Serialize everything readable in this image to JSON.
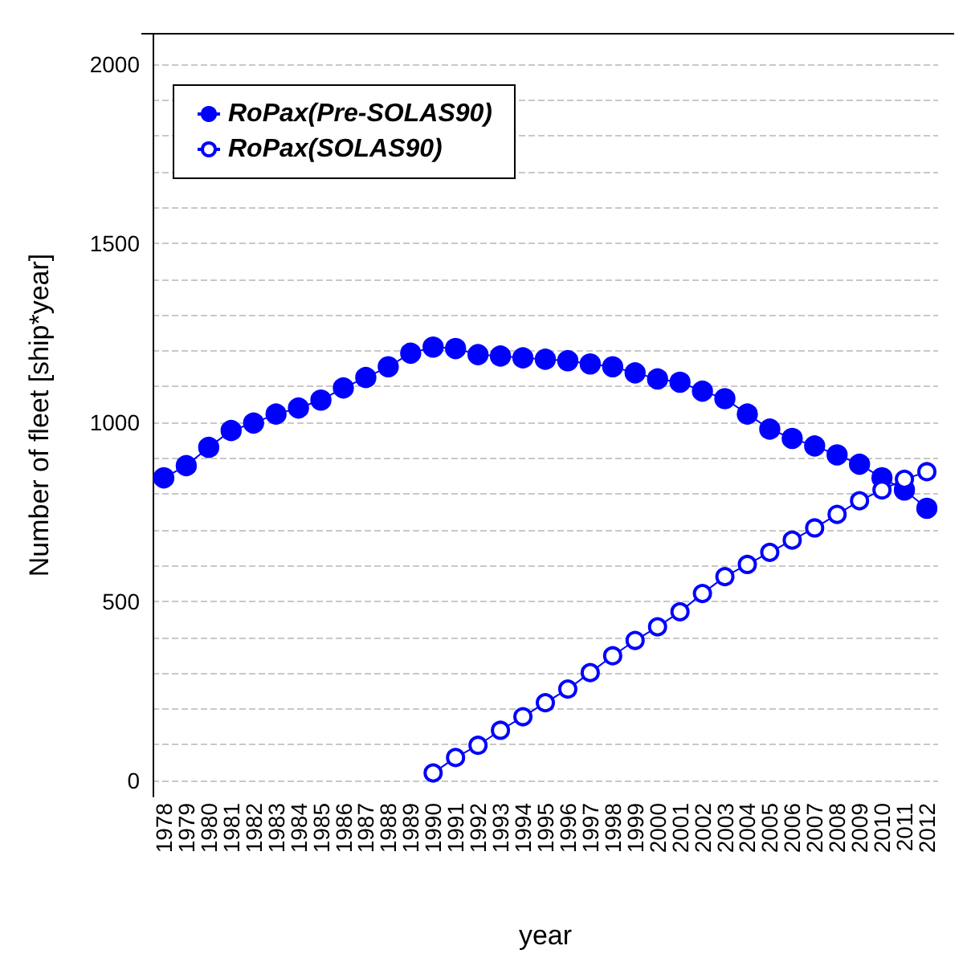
{
  "chart_data": {
    "type": "line",
    "xlabel": "year",
    "ylabel": "Number of fleet [ship*year]",
    "categories": [
      "1978",
      "1979",
      "1980",
      "1981",
      "1982",
      "1983",
      "1984",
      "1985",
      "1986",
      "1987",
      "1988",
      "1989",
      "1990",
      "1991",
      "1992",
      "1993",
      "1994",
      "1995",
      "1996",
      "1997",
      "1998",
      "1999",
      "2000",
      "2001",
      "2002",
      "2003",
      "2004",
      "2005",
      "2006",
      "2007",
      "2008",
      "2009",
      "2010",
      "2011",
      "2012"
    ],
    "series": [
      {
        "name": "RoPax(Pre-SOLAS90)",
        "color": "#0000ff",
        "values": [
          845,
          879,
          930,
          977,
          998,
          1023,
          1040,
          1062,
          1096,
          1125,
          1155,
          1193,
          1210,
          1206,
          1189,
          1185,
          1180,
          1176,
          1172,
          1163,
          1155,
          1138,
          1121,
          1112,
          1087,
          1066,
          1023,
          981,
          955,
          934,
          909,
          883,
          845,
          811,
          760
        ]
      },
      {
        "name": "RoPax(SOLAS90)",
        "color": "#0000ff",
        "values": [
          null,
          null,
          null,
          null,
          null,
          null,
          null,
          null,
          null,
          null,
          null,
          null,
          21,
          64,
          98,
          140,
          178,
          217,
          255,
          301,
          348,
          391,
          429,
          471,
          522,
          569,
          603,
          637,
          671,
          705,
          743,
          781,
          811,
          841,
          862
        ]
      }
    ],
    "ylim": [
      -45,
      2085
    ],
    "yticks": [
      0,
      {
        "value": 100,
        "label": null
      },
      {
        "value": 200,
        "label": null
      },
      {
        "value": 300,
        "label": null
      },
      {
        "value": 400,
        "label": null
      },
      500,
      {
        "value": 600,
        "label": null
      },
      {
        "value": 700,
        "label": null
      },
      {
        "value": 800,
        "label": null
      },
      {
        "value": 900,
        "label": null
      },
      1000,
      {
        "value": 1100,
        "label": null
      },
      {
        "value": 1200,
        "label": null
      },
      {
        "value": 1300,
        "label": null
      },
      {
        "value": 1400,
        "label": null
      },
      1500,
      {
        "value": 1600,
        "label": null
      },
      {
        "value": 1700,
        "label": null
      },
      {
        "value": 1800,
        "label": null
      },
      {
        "value": 1900,
        "label": null
      },
      2000
    ],
    "grid": "y",
    "legend": "top left",
    "marker": "circle",
    "line_style": "solid"
  }
}
